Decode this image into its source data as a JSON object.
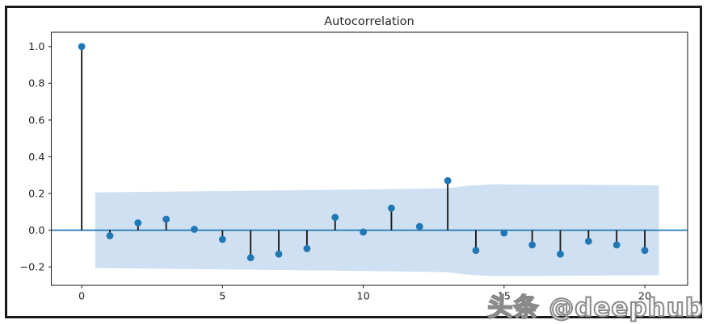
{
  "figure": {
    "background": "#ffffff",
    "border_color": "#191919"
  },
  "chart_data": {
    "type": "stem",
    "title": "Autocorrelation",
    "xlabel": "",
    "ylabel": "",
    "x": [
      0,
      1,
      2,
      3,
      4,
      5,
      6,
      7,
      8,
      9,
      10,
      11,
      12,
      13,
      14,
      15,
      16,
      17,
      18,
      19,
      20
    ],
    "values": [
      1.0,
      -0.03,
      0.04,
      0.06,
      0.005,
      -0.05,
      -0.15,
      -0.13,
      -0.1,
      0.07,
      -0.01,
      0.12,
      0.02,
      0.27,
      -0.11,
      -0.015,
      -0.08,
      -0.13,
      -0.06,
      -0.08,
      -0.11
    ],
    "confidence_band": {
      "x": [
        0.48,
        3.0,
        6.0,
        9.0,
        12.0,
        13.0,
        13.7,
        14.6,
        20.5
      ],
      "upper": [
        0.206,
        0.21,
        0.215,
        0.22,
        0.226,
        0.229,
        0.242,
        0.25,
        0.245
      ],
      "lower": [
        -0.206,
        -0.21,
        -0.215,
        -0.22,
        -0.226,
        -0.229,
        -0.242,
        -0.25,
        -0.245
      ]
    },
    "xticks": [
      0,
      5,
      10,
      15,
      20
    ],
    "yticks": [
      1.0,
      0.8,
      0.6,
      0.4,
      0.2,
      0.0,
      -0.2
    ],
    "xlim": [
      -1.08,
      21.52
    ],
    "ylim": [
      -0.3,
      1.078
    ],
    "grid": false,
    "legend": null,
    "colors": {
      "marker": "#2077b4",
      "stem": "#1a1a1a",
      "zero_line": "#2077b4",
      "band": "#cfe0f2",
      "axis": "#2b2b2b",
      "text": "#262626"
    }
  },
  "watermark": {
    "text": "头条 @deephub"
  }
}
